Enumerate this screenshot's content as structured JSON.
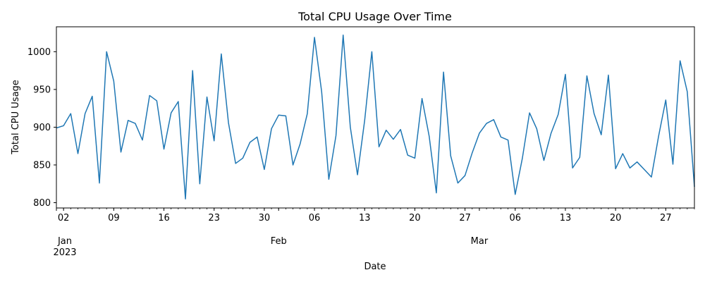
{
  "chart_data": {
    "type": "line",
    "title": "Total CPU Usage Over Time",
    "xlabel": "Date",
    "ylabel": "Total CPU Usage",
    "x_start": "2023-01-01",
    "x_end": "2023-03-31",
    "ylim": [
      793,
      1033
    ],
    "y_ticks": [
      800,
      850,
      900,
      950,
      1000
    ],
    "grid": false,
    "legend": "none",
    "line_color": "#1f77b4",
    "x_major_ticks": [
      {
        "date": "2023-01-02",
        "label": "02"
      },
      {
        "date": "2023-01-09",
        "label": "09"
      },
      {
        "date": "2023-01-16",
        "label": "16"
      },
      {
        "date": "2023-01-23",
        "label": "23"
      },
      {
        "date": "2023-01-30",
        "label": "30"
      },
      {
        "date": "2023-02-06",
        "label": "06"
      },
      {
        "date": "2023-02-13",
        "label": "13"
      },
      {
        "date": "2023-02-20",
        "label": "20"
      },
      {
        "date": "2023-02-27",
        "label": "27"
      },
      {
        "date": "2023-03-06",
        "label": "06"
      },
      {
        "date": "2023-03-13",
        "label": "13"
      },
      {
        "date": "2023-03-20",
        "label": "20"
      },
      {
        "date": "2023-03-27",
        "label": "27"
      }
    ],
    "month_labels": [
      {
        "date": "2023-01-01",
        "month": "Jan",
        "year": "2023"
      },
      {
        "date": "2023-02-01",
        "month": "Feb",
        "year": ""
      },
      {
        "date": "2023-03-01",
        "month": "Mar",
        "year": ""
      }
    ],
    "series": [
      {
        "x": [
          "2023-01-01",
          "2023-01-02",
          "2023-01-03",
          "2023-01-04",
          "2023-01-05",
          "2023-01-06",
          "2023-01-07",
          "2023-01-08",
          "2023-01-09",
          "2023-01-10",
          "2023-01-11",
          "2023-01-12",
          "2023-01-13",
          "2023-01-14",
          "2023-01-15",
          "2023-01-16",
          "2023-01-17",
          "2023-01-18",
          "2023-01-19",
          "2023-01-20",
          "2023-01-21",
          "2023-01-22",
          "2023-01-23",
          "2023-01-24",
          "2023-01-25",
          "2023-01-26",
          "2023-01-27",
          "2023-01-28",
          "2023-01-29",
          "2023-01-30",
          "2023-01-31",
          "2023-02-01",
          "2023-02-02",
          "2023-02-03",
          "2023-02-04",
          "2023-02-05",
          "2023-02-06",
          "2023-02-07",
          "2023-02-08",
          "2023-02-09",
          "2023-02-10",
          "2023-02-11",
          "2023-02-12",
          "2023-02-13",
          "2023-02-14",
          "2023-02-15",
          "2023-02-16",
          "2023-02-17",
          "2023-02-18",
          "2023-02-19",
          "2023-02-20",
          "2023-02-21",
          "2023-02-22",
          "2023-02-23",
          "2023-02-24",
          "2023-02-25",
          "2023-02-26",
          "2023-02-27",
          "2023-02-28",
          "2023-03-01",
          "2023-03-02",
          "2023-03-03",
          "2023-03-04",
          "2023-03-05",
          "2023-03-06",
          "2023-03-07",
          "2023-03-08",
          "2023-03-09",
          "2023-03-10",
          "2023-03-11",
          "2023-03-12",
          "2023-03-13",
          "2023-03-14",
          "2023-03-15",
          "2023-03-16",
          "2023-03-17",
          "2023-03-18",
          "2023-03-19",
          "2023-03-20",
          "2023-03-21",
          "2023-03-22",
          "2023-03-23",
          "2023-03-24",
          "2023-03-25",
          "2023-03-26",
          "2023-03-27",
          "2023-03-28",
          "2023-03-29",
          "2023-03-30",
          "2023-03-31"
        ],
        "values": [
          899,
          902,
          918,
          865,
          918,
          941,
          826,
          1000,
          961,
          867,
          909,
          905,
          883,
          942,
          935,
          871,
          919,
          934,
          805,
          975,
          825,
          940,
          882,
          997,
          906,
          852,
          859,
          880,
          887,
          844,
          898,
          916,
          915,
          850,
          878,
          918,
          1019,
          947,
          831,
          889,
          1022,
          900,
          837,
          909,
          1000,
          874,
          896,
          884,
          897,
          863,
          859,
          938,
          888,
          813,
          973,
          862,
          826,
          836,
          866,
          892,
          905,
          910,
          887,
          883,
          811,
          859,
          919,
          898,
          856,
          892,
          917,
          970,
          846,
          860,
          968,
          918,
          890,
          969,
          845,
          865,
          846,
          854,
          844,
          834,
          888,
          936,
          851,
          988,
          947,
          821
        ]
      }
    ]
  }
}
